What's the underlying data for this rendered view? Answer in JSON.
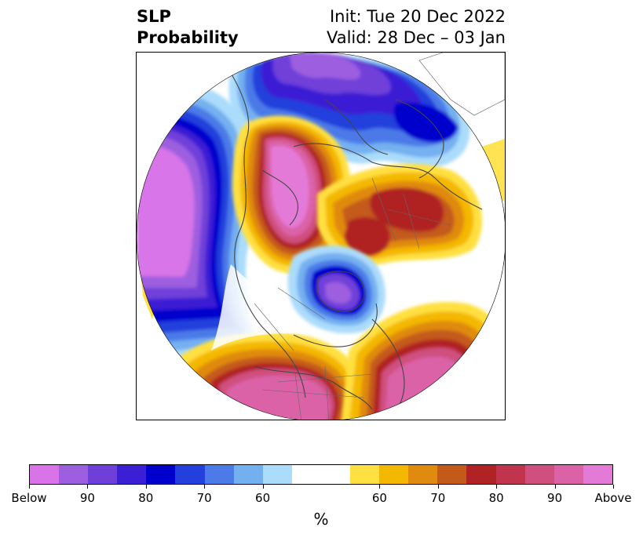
{
  "title": {
    "variable": "SLP",
    "metric": "Probability",
    "init": "Init: Tue 20 Dec 2022",
    "valid": "Valid: 28 Dec – 03 Jan"
  },
  "colorbar": {
    "unit": "%",
    "ticks": [
      "Below",
      "90",
      "80",
      "70",
      "60",
      "60",
      "70",
      "80",
      "90",
      "Above"
    ],
    "below_colors": [
      "#d874e8",
      "#9d5fe0",
      "#6f3fd9",
      "#3a1fd4",
      "#0000cd",
      "#2340dc",
      "#4c7ae8",
      "#74b0f0",
      "#acdcfb"
    ],
    "neutral_color": "#ffffff",
    "above_colors": [
      "#ffe040",
      "#f4b800",
      "#e08a10",
      "#c45a1a",
      "#b02224",
      "#c0344e",
      "#cf4f7e",
      "#dc62a8",
      "#e47ad8"
    ]
  },
  "map": {
    "projection": "north polar stereographic",
    "features": [
      {
        "name": "north-pacific-low",
        "category": "below",
        "level": 95
      },
      {
        "name": "greenland-polar-low",
        "category": "below",
        "level": 80
      },
      {
        "name": "hudson-bay-low",
        "category": "below",
        "level": 85
      },
      {
        "name": "siberia-high",
        "category": "above",
        "level": 95
      },
      {
        "name": "scandinavia-high",
        "category": "above",
        "level": 75
      },
      {
        "name": "north-america-high",
        "category": "above",
        "level": 90
      },
      {
        "name": "north-atlantic-high",
        "category": "above",
        "level": 90
      }
    ]
  }
}
